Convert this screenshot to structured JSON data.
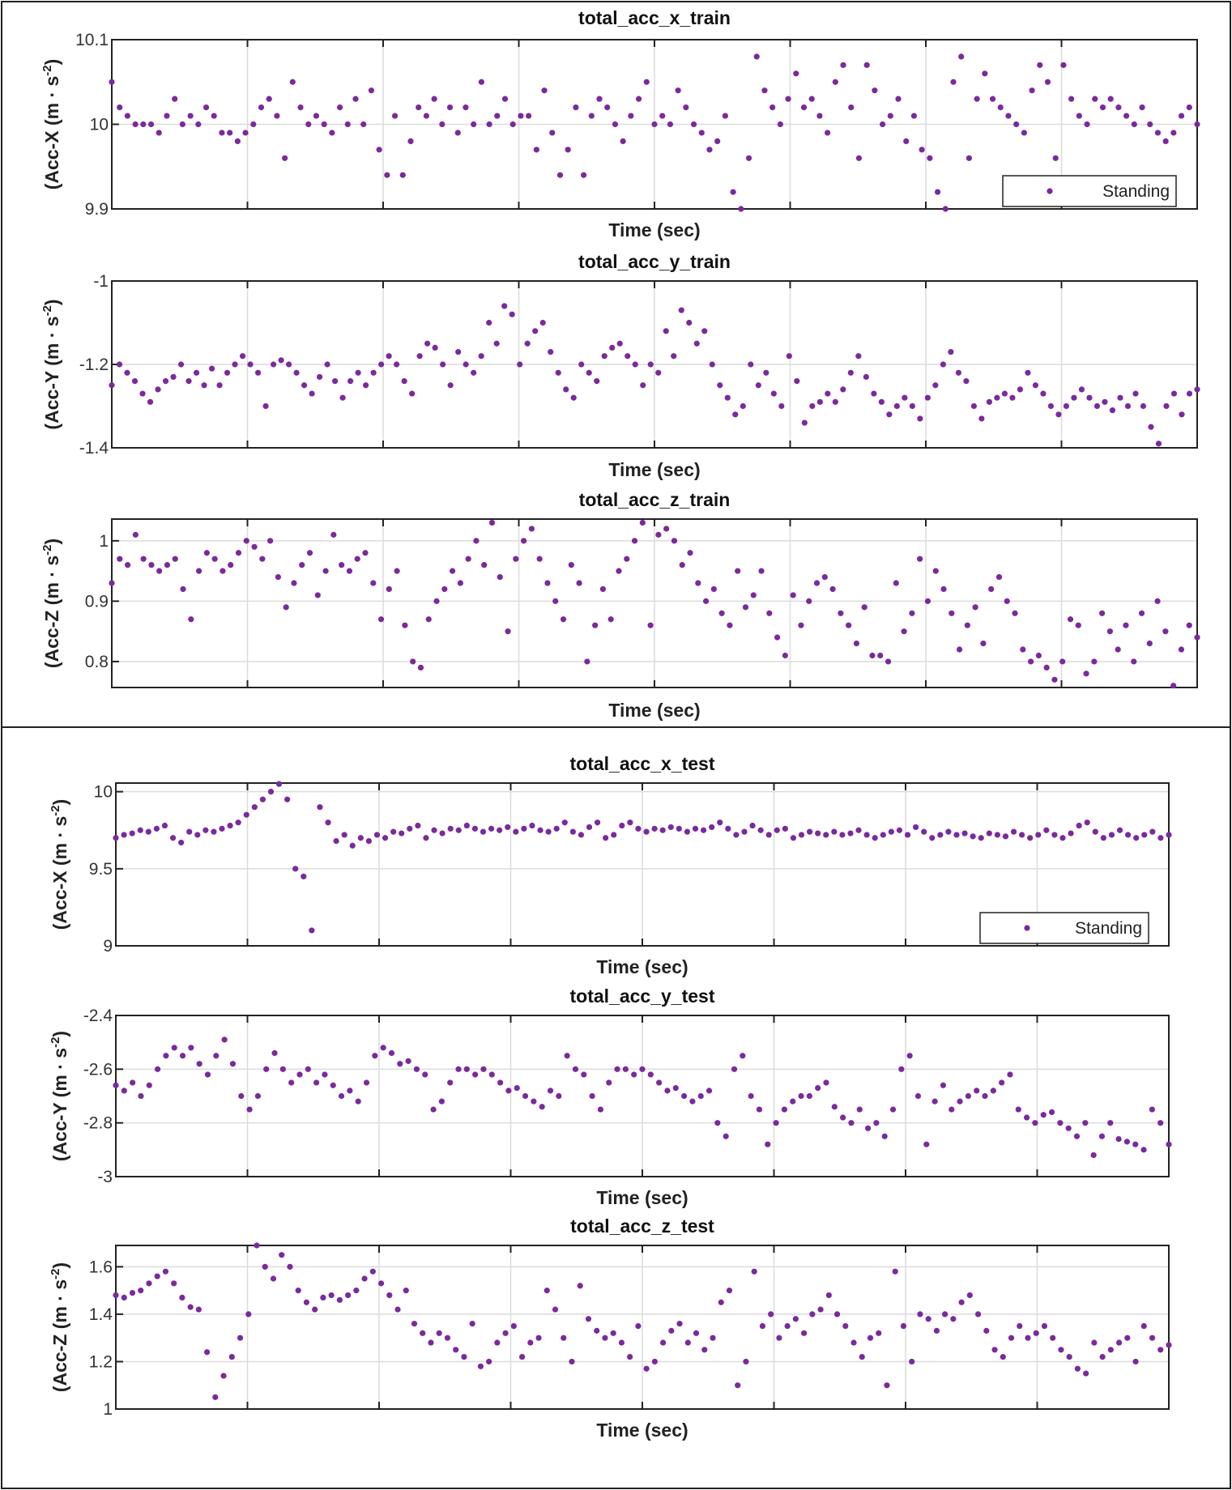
{
  "chart_data": [
    {
      "type": "scatter",
      "title": "total_acc_x_train",
      "xlabel": "Time (sec)",
      "ylabel": "(Acc-X (m · s",
      "ylabel_sup": "-2",
      "ylabel_end": ")",
      "ylim": [
        9.9,
        10.1
      ],
      "yticks": [
        "9.9",
        "10",
        "10.1"
      ],
      "ytick_values": [
        9.9,
        10,
        10.1
      ],
      "xlim": [
        0,
        8
      ],
      "xgrid": [
        1,
        2,
        3,
        4,
        5,
        6,
        7
      ],
      "grid": true,
      "legend": "Standing",
      "legend_position": "bottom-right",
      "color": "#7a2a9c",
      "values": [
        10.05,
        10.02,
        10.01,
        10.0,
        10.0,
        10.0,
        9.99,
        10.01,
        10.03,
        10.0,
        10.01,
        10.0,
        10.02,
        10.01,
        9.99,
        9.99,
        9.98,
        9.99,
        10.0,
        10.02,
        10.03,
        10.01,
        9.96,
        10.05,
        10.02,
        10.0,
        10.01,
        10.0,
        9.99,
        10.02,
        10.0,
        10.03,
        10.0,
        10.04,
        9.97,
        9.94,
        10.01,
        9.94,
        9.98,
        10.02,
        10.01,
        10.03,
        10.0,
        10.02,
        9.99,
        10.02,
        10.0,
        10.05,
        10.0,
        10.01,
        10.03,
        10.0,
        10.01,
        10.01,
        9.97,
        10.04,
        9.99,
        9.94,
        9.97,
        10.02,
        9.94,
        10.01,
        10.03,
        10.02,
        10.0,
        9.98,
        10.01,
        10.03,
        10.05,
        10.0,
        10.01,
        10.0,
        10.04,
        10.02,
        10.0,
        9.99,
        9.97,
        9.98,
        10.01,
        9.92,
        9.9,
        9.96,
        10.08,
        10.04,
        10.02,
        10.0,
        10.03,
        10.06,
        10.02,
        10.03,
        10.01,
        9.99,
        10.05,
        10.07,
        10.02,
        9.96,
        10.07,
        10.04,
        10.0,
        10.01,
        10.03,
        9.98,
        10.01,
        9.97,
        9.96,
        9.92,
        9.9,
        10.05,
        10.08,
        9.96,
        10.03,
        10.06,
        10.03,
        10.02,
        10.01,
        10.0,
        9.99,
        10.04,
        10.07,
        10.05,
        9.96,
        10.07,
        10.03,
        10.01,
        10.0,
        10.03,
        10.02,
        10.03,
        10.02,
        10.01,
        10.0,
        10.02,
        10.0,
        9.99,
        9.98,
        9.99,
        10.01,
        10.02,
        10.0
      ]
    },
    {
      "type": "scatter",
      "title": "total_acc_y_train",
      "xlabel": "Time (sec)",
      "ylabel": "(Acc-Y (m · s",
      "ylabel_sup": "-2",
      "ylabel_end": ")",
      "ylim": [
        -1.4,
        -1.0
      ],
      "yticks": [
        "-1.4",
        "-1.2",
        "-1"
      ],
      "ytick_values": [
        -1.4,
        -1.2,
        -1.0
      ],
      "xlim": [
        0,
        8
      ],
      "xgrid": [
        1,
        2,
        3,
        4,
        5,
        6,
        7
      ],
      "grid": true,
      "color": "#7a2a9c",
      "values": [
        -1.25,
        -1.2,
        -1.22,
        -1.24,
        -1.27,
        -1.29,
        -1.26,
        -1.24,
        -1.23,
        -1.2,
        -1.24,
        -1.22,
        -1.25,
        -1.21,
        -1.25,
        -1.22,
        -1.2,
        -1.18,
        -1.2,
        -1.22,
        -1.3,
        -1.2,
        -1.19,
        -1.2,
        -1.22,
        -1.25,
        -1.27,
        -1.23,
        -1.2,
        -1.24,
        -1.28,
        -1.24,
        -1.22,
        -1.25,
        -1.22,
        -1.2,
        -1.18,
        -1.2,
        -1.24,
        -1.27,
        -1.18,
        -1.15,
        -1.16,
        -1.2,
        -1.25,
        -1.17,
        -1.2,
        -1.22,
        -1.18,
        -1.1,
        -1.15,
        -1.06,
        -1.08,
        -1.2,
        -1.15,
        -1.12,
        -1.1,
        -1.17,
        -1.22,
        -1.26,
        -1.28,
        -1.2,
        -1.22,
        -1.24,
        -1.18,
        -1.16,
        -1.15,
        -1.18,
        -1.2,
        -1.25,
        -1.2,
        -1.22,
        -1.12,
        -1.18,
        -1.07,
        -1.1,
        -1.15,
        -1.12,
        -1.2,
        -1.25,
        -1.28,
        -1.32,
        -1.3,
        -1.2,
        -1.25,
        -1.22,
        -1.27,
        -1.3,
        -1.18,
        -1.24,
        -1.34,
        -1.3,
        -1.29,
        -1.27,
        -1.29,
        -1.26,
        -1.22,
        -1.18,
        -1.23,
        -1.27,
        -1.29,
        -1.32,
        -1.3,
        -1.28,
        -1.3,
        -1.33,
        -1.28,
        -1.25,
        -1.2,
        -1.17,
        -1.22,
        -1.24,
        -1.3,
        -1.33,
        -1.29,
        -1.28,
        -1.27,
        -1.28,
        -1.26,
        -1.22,
        -1.25,
        -1.27,
        -1.3,
        -1.32,
        -1.3,
        -1.28,
        -1.26,
        -1.28,
        -1.3,
        -1.29,
        -1.31,
        -1.28,
        -1.3,
        -1.27,
        -1.3,
        -1.35,
        -1.39,
        -1.3,
        -1.27,
        -1.32,
        -1.27,
        -1.26
      ]
    },
    {
      "type": "scatter",
      "title": "total_acc_z_train",
      "xlabel": "Time (sec)",
      "ylabel": "(Acc-Z (m · s",
      "ylabel_sup": "-2",
      "ylabel_end": ")",
      "ylim": [
        0.757,
        1.036
      ],
      "yticks": [
        "0.8",
        "0.9",
        "1"
      ],
      "ytick_values": [
        0.8,
        0.9,
        1.0
      ],
      "xlim": [
        0,
        8
      ],
      "xgrid": [
        1,
        2,
        3,
        4,
        5,
        6,
        7
      ],
      "grid": true,
      "color": "#7a2a9c",
      "values": [
        0.93,
        0.97,
        0.96,
        1.01,
        0.97,
        0.96,
        0.95,
        0.96,
        0.97,
        0.92,
        0.87,
        0.95,
        0.98,
        0.97,
        0.95,
        0.96,
        0.98,
        1.0,
        0.99,
        0.97,
        1.0,
        0.94,
        0.89,
        0.93,
        0.96,
        0.98,
        0.91,
        0.95,
        1.01,
        0.96,
        0.95,
        0.97,
        0.98,
        0.93,
        0.87,
        0.92,
        0.95,
        0.86,
        0.8,
        0.79,
        0.87,
        0.9,
        0.92,
        0.95,
        0.93,
        0.97,
        1.0,
        0.96,
        1.03,
        0.94,
        0.85,
        0.97,
        1.0,
        1.02,
        0.97,
        0.93,
        0.9,
        0.87,
        0.96,
        0.93,
        0.8,
        0.86,
        0.92,
        0.87,
        0.95,
        0.97,
        1.0,
        1.03,
        0.86,
        1.01,
        1.02,
        1.0,
        0.96,
        0.98,
        0.93,
        0.9,
        0.92,
        0.88,
        0.86,
        0.95,
        0.89,
        0.91,
        0.95,
        0.88,
        0.84,
        0.81,
        0.91,
        0.86,
        0.9,
        0.93,
        0.94,
        0.92,
        0.88,
        0.86,
        0.83,
        0.89,
        0.81,
        0.81,
        0.8,
        0.93,
        0.85,
        0.88,
        0.97,
        0.9,
        0.95,
        0.92,
        0.88,
        0.82,
        0.86,
        0.89,
        0.83,
        0.92,
        0.94,
        0.9,
        0.88,
        0.82,
        0.8,
        0.81,
        0.79,
        0.77,
        0.8,
        0.87,
        0.86,
        0.78,
        0.8,
        0.88,
        0.85,
        0.82,
        0.86,
        0.8,
        0.88,
        0.83,
        0.9,
        0.85,
        0.76,
        0.82,
        0.86,
        0.84
      ]
    },
    {
      "type": "scatter",
      "title": "total_acc_x_test",
      "xlabel": "Time (sec)",
      "ylabel": "(Acc-X (m · s",
      "ylabel_sup": "-2",
      "ylabel_end": ")",
      "ylim": [
        9.0,
        10.056
      ],
      "yticks": [
        "9",
        "9.5",
        "10"
      ],
      "ytick_values": [
        9.0,
        9.5,
        10.0
      ],
      "xlim": [
        0,
        8
      ],
      "xgrid": [
        1,
        2,
        3,
        4,
        5,
        6,
        7
      ],
      "grid": true,
      "legend": "Standing",
      "legend_position": "bottom-right",
      "color": "#7a2a9c",
      "values": [
        9.7,
        9.72,
        9.73,
        9.75,
        9.74,
        9.76,
        9.78,
        9.7,
        9.67,
        9.74,
        9.72,
        9.75,
        9.74,
        9.76,
        9.78,
        9.8,
        9.85,
        9.9,
        9.95,
        10.0,
        10.05,
        9.95,
        9.5,
        9.45,
        9.1,
        9.9,
        9.8,
        9.68,
        9.72,
        9.65,
        9.7,
        9.68,
        9.72,
        9.7,
        9.74,
        9.73,
        9.76,
        9.78,
        9.7,
        9.75,
        9.73,
        9.76,
        9.75,
        9.78,
        9.76,
        9.74,
        9.76,
        9.75,
        9.77,
        9.74,
        9.76,
        9.78,
        9.75,
        9.74,
        9.76,
        9.8,
        9.74,
        9.72,
        9.77,
        9.8,
        9.7,
        9.72,
        9.78,
        9.8,
        9.76,
        9.74,
        9.76,
        9.75,
        9.77,
        9.76,
        9.74,
        9.76,
        9.75,
        9.77,
        9.8,
        9.76,
        9.72,
        9.74,
        9.78,
        9.75,
        9.72,
        9.75,
        9.76,
        9.7,
        9.72,
        9.74,
        9.73,
        9.72,
        9.74,
        9.72,
        9.73,
        9.75,
        9.72,
        9.7,
        9.72,
        9.74,
        9.75,
        9.72,
        9.77,
        9.74,
        9.7,
        9.72,
        9.74,
        9.72,
        9.73,
        9.71,
        9.7,
        9.73,
        9.72,
        9.71,
        9.74,
        9.72,
        9.7,
        9.72,
        9.75,
        9.72,
        9.7,
        9.73,
        9.78,
        9.8,
        9.74,
        9.7,
        9.72,
        9.75,
        9.72,
        9.7,
        9.72,
        9.74,
        9.7,
        9.72
      ]
    },
    {
      "type": "scatter",
      "title": "total_acc_y_test",
      "xlabel": "Time (sec)",
      "ylabel": "(Acc-Y (m · s",
      "ylabel_sup": "-2",
      "ylabel_end": ")",
      "ylim": [
        -3.0,
        -2.4
      ],
      "yticks": [
        "-3",
        "-2.8",
        "-2.6",
        "-2.4"
      ],
      "ytick_values": [
        -3.0,
        -2.8,
        -2.6,
        -2.4
      ],
      "xlim": [
        0,
        8
      ],
      "xgrid": [
        1,
        2,
        3,
        4,
        5,
        6,
        7
      ],
      "grid": true,
      "color": "#7a2a9c",
      "values": [
        -2.66,
        -2.68,
        -2.65,
        -2.7,
        -2.66,
        -2.6,
        -2.55,
        -2.52,
        -2.55,
        -2.52,
        -2.58,
        -2.62,
        -2.55,
        -2.49,
        -2.58,
        -2.7,
        -2.75,
        -2.7,
        -2.6,
        -2.54,
        -2.6,
        -2.65,
        -2.62,
        -2.6,
        -2.65,
        -2.62,
        -2.66,
        -2.7,
        -2.68,
        -2.72,
        -2.65,
        -2.55,
        -2.52,
        -2.54,
        -2.58,
        -2.57,
        -2.6,
        -2.62,
        -2.75,
        -2.72,
        -2.65,
        -2.6,
        -2.6,
        -2.62,
        -2.6,
        -2.62,
        -2.65,
        -2.68,
        -2.67,
        -2.7,
        -2.72,
        -2.74,
        -2.68,
        -2.7,
        -2.55,
        -2.6,
        -2.62,
        -2.7,
        -2.75,
        -2.65,
        -2.6,
        -2.6,
        -2.62,
        -2.6,
        -2.62,
        -2.65,
        -2.68,
        -2.67,
        -2.7,
        -2.72,
        -2.7,
        -2.68,
        -2.8,
        -2.85,
        -2.6,
        -2.55,
        -2.7,
        -2.75,
        -2.88,
        -2.8,
        -2.75,
        -2.72,
        -2.7,
        -2.7,
        -2.67,
        -2.65,
        -2.74,
        -2.78,
        -2.8,
        -2.75,
        -2.82,
        -2.8,
        -2.85,
        -2.75,
        -2.6,
        -2.55,
        -2.7,
        -2.88,
        -2.72,
        -2.66,
        -2.75,
        -2.72,
        -2.7,
        -2.68,
        -2.7,
        -2.68,
        -2.65,
        -2.62,
        -2.75,
        -2.78,
        -2.8,
        -2.77,
        -2.76,
        -2.8,
        -2.82,
        -2.85,
        -2.8,
        -2.92,
        -2.85,
        -2.8,
        -2.86,
        -2.87,
        -2.88,
        -2.9,
        -2.75,
        -2.8,
        -2.88
      ]
    },
    {
      "type": "scatter",
      "title": "total_acc_z_test",
      "xlabel": "Time (sec)",
      "ylabel": "(Acc-Z (m · s",
      "ylabel_sup": "-2",
      "ylabel_end": ")",
      "ylim": [
        1.0,
        1.69
      ],
      "yticks": [
        "1",
        "1.2",
        "1.4",
        "1.6"
      ],
      "ytick_values": [
        1.0,
        1.2,
        1.4,
        1.6
      ],
      "xlim": [
        0,
        8
      ],
      "xgrid": [
        1,
        2,
        3,
        4,
        5,
        6,
        7
      ],
      "grid": true,
      "color": "#7a2a9c",
      "values": [
        1.48,
        1.47,
        1.49,
        1.5,
        1.53,
        1.56,
        1.58,
        1.53,
        1.47,
        1.43,
        1.42,
        1.24,
        1.05,
        1.14,
        1.22,
        1.3,
        1.4,
        1.69,
        1.6,
        1.55,
        1.65,
        1.6,
        1.5,
        1.45,
        1.42,
        1.47,
        1.48,
        1.46,
        1.48,
        1.5,
        1.55,
        1.58,
        1.53,
        1.48,
        1.42,
        1.5,
        1.36,
        1.32,
        1.28,
        1.32,
        1.3,
        1.25,
        1.22,
        1.36,
        1.18,
        1.2,
        1.28,
        1.32,
        1.35,
        1.22,
        1.28,
        1.3,
        1.5,
        1.42,
        1.3,
        1.2,
        1.52,
        1.38,
        1.33,
        1.3,
        1.32,
        1.28,
        1.22,
        1.35,
        1.17,
        1.2,
        1.28,
        1.33,
        1.36,
        1.28,
        1.32,
        1.25,
        1.3,
        1.45,
        1.5,
        1.1,
        1.2,
        1.58,
        1.35,
        1.4,
        1.3,
        1.35,
        1.38,
        1.32,
        1.4,
        1.42,
        1.48,
        1.4,
        1.35,
        1.28,
        1.22,
        1.3,
        1.32,
        1.1,
        1.58,
        1.35,
        1.2,
        1.4,
        1.38,
        1.33,
        1.4,
        1.38,
        1.45,
        1.48,
        1.4,
        1.33,
        1.25,
        1.22,
        1.3,
        1.35,
        1.3,
        1.32,
        1.35,
        1.3,
        1.25,
        1.22,
        1.17,
        1.15,
        1.28,
        1.22,
        1.25,
        1.28,
        1.3,
        1.2,
        1.35,
        1.3,
        1.25,
        1.27
      ]
    }
  ]
}
